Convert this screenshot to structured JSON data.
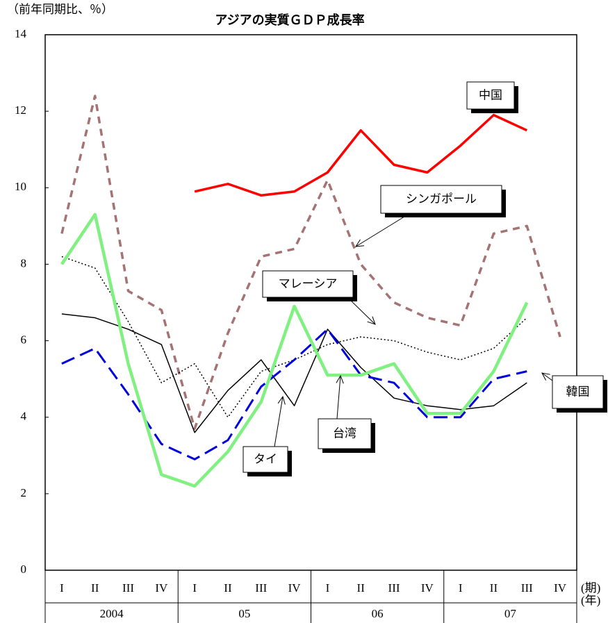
{
  "chart_data": {
    "type": "line",
    "title": "アジアの実質ＧＤＰ成長率",
    "y_label": "（前年同期比、％）",
    "x_label": "(期)",
    "x_label_2": "(年)",
    "categories": [
      "I",
      "II",
      "III",
      "IV",
      "I",
      "II",
      "III",
      "IV",
      "I",
      "II",
      "III",
      "IV",
      "I",
      "II",
      "III",
      "IV"
    ],
    "years": [
      "2004",
      "05",
      "06",
      "07"
    ],
    "ylim": [
      0,
      14
    ],
    "yticks": [
      0,
      2,
      4,
      6,
      8,
      10,
      12,
      14
    ],
    "series": [
      {
        "name": "シンガポール",
        "color": "#a57373",
        "linestyle": "dashed",
        "linewidth": 3.5,
        "values": [
          8.8,
          12.4,
          7.3,
          6.8,
          3.7,
          6.2,
          8.2,
          8.4,
          10.2,
          8.0,
          7.0,
          6.6,
          6.4,
          8.8,
          9.0,
          6.1
        ]
      },
      {
        "name": "マレーシア",
        "color": "#000000",
        "linestyle": "dotted",
        "linewidth": 1.5,
        "values": [
          8.2,
          7.9,
          6.5,
          4.9,
          5.4,
          4.0,
          5.2,
          5.5,
          5.9,
          6.1,
          6.0,
          5.7,
          5.5,
          5.8,
          6.6,
          null
        ]
      },
      {
        "name": "タイ",
        "color": "#000000",
        "linestyle": "solid",
        "linewidth": 1.5,
        "values": [
          6.7,
          6.6,
          6.3,
          5.9,
          3.6,
          4.7,
          5.5,
          4.3,
          6.3,
          5.3,
          4.5,
          4.3,
          4.2,
          4.3,
          4.9,
          null
        ]
      },
      {
        "name": "韓国",
        "color": "#0000dd",
        "linestyle": "longdash",
        "linewidth": 3,
        "values": [
          5.4,
          5.8,
          4.6,
          3.3,
          2.9,
          3.4,
          4.8,
          5.5,
          6.3,
          5.1,
          4.9,
          4.0,
          4.0,
          5.0,
          5.2,
          null
        ]
      },
      {
        "name": "台湾",
        "color": "#80f080",
        "linestyle": "solid",
        "linewidth": 4.5,
        "values": [
          8.0,
          9.3,
          5.4,
          2.5,
          2.2,
          3.1,
          4.4,
          6.9,
          5.1,
          5.1,
          5.4,
          4.1,
          4.1,
          5.2,
          7.0,
          null
        ]
      },
      {
        "name": "中国",
        "color": "#ff0000",
        "linestyle": "solid",
        "linewidth": 3.5,
        "values": [
          null,
          null,
          null,
          null,
          9.9,
          10.1,
          9.8,
          9.9,
          10.4,
          11.5,
          10.6,
          10.4,
          11.1,
          11.9,
          11.5,
          null
        ]
      }
    ]
  }
}
